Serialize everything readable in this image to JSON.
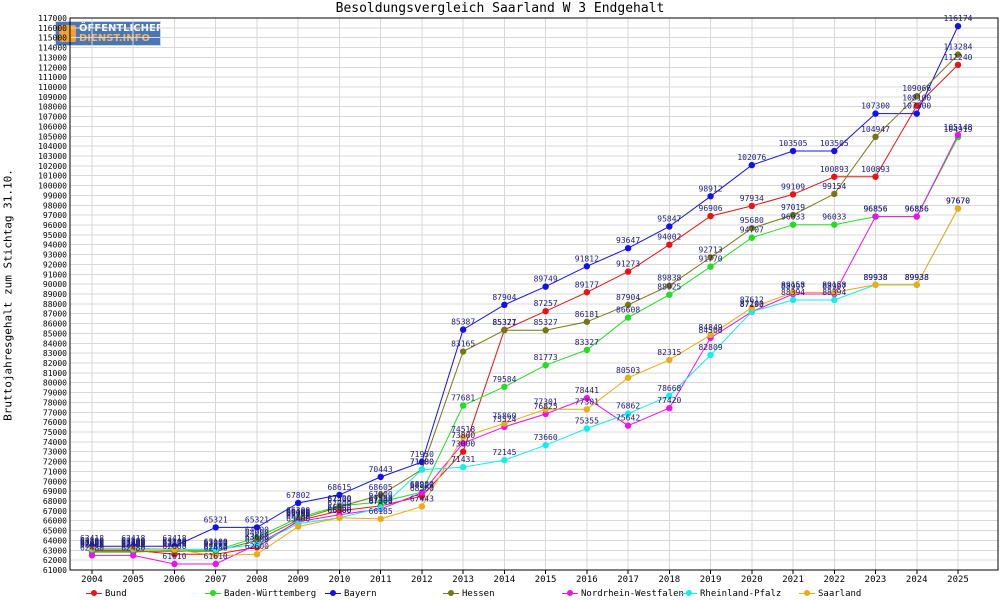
{
  "logo": {
    "line1": "ÖFFENTLICHER",
    "line2": "DIENST.INFO"
  },
  "chart_data": {
    "type": "line",
    "title": "Besoldungsvergleich Saarland W 3 Endgehalt",
    "xlabel": "",
    "ylabel": "Bruttojahresgehalt zum Stichtag 31.10.",
    "x": [
      "2004",
      "2005",
      "2006",
      "2007",
      "2008",
      "2009",
      "2010",
      "2011",
      "2012",
      "2013",
      "2014",
      "2015",
      "2016",
      "2017",
      "2018",
      "2019",
      "2020",
      "2021",
      "2022",
      "2023",
      "2024",
      "2025"
    ],
    "ylim": [
      61000,
      117000
    ],
    "ytick_step": 1000,
    "grid": true,
    "legend_position": "bottom",
    "series": [
      {
        "name": "Bund",
        "color": "#ee1111",
        "values": [
          63000,
          63000,
          62600,
          62600,
          63300,
          66000,
          67000,
          67500,
          68500,
          73000,
          85371,
          87257,
          89177,
          91273,
          94002,
          96906,
          97934,
          99109,
          100893,
          100893,
          108100,
          112240
        ]
      },
      {
        "name": "Baden-Württemberg",
        "color": "#22dd22",
        "values": [
          62800,
          62800,
          63000,
          63000,
          64300,
          66300,
          67500,
          67900,
          68900,
          77681,
          79584,
          81773,
          83327,
          86608,
          88925,
          91770,
          94707,
          96033,
          96033,
          96856,
          96856,
          104919
        ]
      },
      {
        "name": "Bayern",
        "color": "#1111ee",
        "values": [
          63418,
          63418,
          63418,
          65321,
          65321,
          67802,
          68615,
          70443,
          71950,
          85387,
          87904,
          89749,
          91812,
          93647,
          95847,
          98912,
          102076,
          103505,
          103505,
          107300,
          107300,
          116174
        ]
      },
      {
        "name": "Hessen",
        "color": "#777711",
        "values": [
          62900,
          62900,
          62900,
          62900,
          64000,
          66100,
          67400,
          68605,
          71200,
          83165,
          85327,
          85327,
          86181,
          87904,
          89838,
          92713,
          95680,
          97019,
          99154,
          104947,
          109066,
          113284
        ]
      },
      {
        "name": "Nordrhein-Westfalen",
        "color": "#ee11ee",
        "values": [
          62480,
          62480,
          61610,
          61610,
          63600,
          65900,
          66600,
          67200,
          68823,
          73860,
          75524,
          76825,
          78441,
          75642,
          77420,
          84560,
          87193,
          88997,
          88997,
          96856,
          96856,
          105148
        ]
      },
      {
        "name": "Rheinland-Pfalz",
        "color": "#11eeee",
        "values": [
          63100,
          63100,
          63100,
          63100,
          63600,
          65700,
          66300,
          67300,
          71180,
          71431,
          72145,
          73660,
          75355,
          76862,
          78668,
          82809,
          87200,
          88394,
          88394,
          89938,
          89938,
          97670
        ]
      },
      {
        "name": "Saarland",
        "color": "#eeaa11",
        "values": [
          63200,
          63200,
          63100,
          62450,
          62600,
          65400,
          66300,
          66185,
          67443,
          74518,
          75860,
          77301,
          77301,
          80503,
          82315,
          84849,
          87612,
          89158,
          89158,
          89938,
          89938,
          97670
        ]
      }
    ]
  }
}
